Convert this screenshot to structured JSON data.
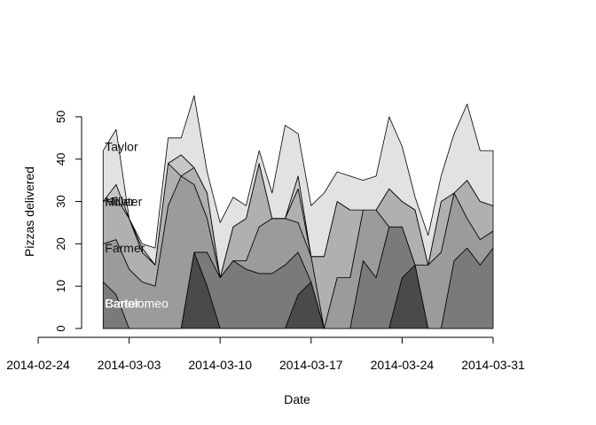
{
  "chart_data": {
    "type": "area",
    "stacked": true,
    "xlabel": "Date",
    "ylabel": "Pizzas delivered",
    "xlim": [
      "2014-02-24",
      "2014-03-31"
    ],
    "ylim": [
      0,
      55
    ],
    "grid": false,
    "x": [
      "2014-03-01",
      "2014-03-02",
      "2014-03-03",
      "2014-03-04",
      "2014-03-05",
      "2014-03-06",
      "2014-03-07",
      "2014-03-08",
      "2014-03-09",
      "2014-03-10",
      "2014-03-11",
      "2014-03-12",
      "2014-03-13",
      "2014-03-14",
      "2014-03-15",
      "2014-03-16",
      "2014-03-17",
      "2014-03-18",
      "2014-03-19",
      "2014-03-20",
      "2014-03-21",
      "2014-03-22",
      "2014-03-23",
      "2014-03-24",
      "2014-03-25",
      "2014-03-26",
      "2014-03-27",
      "2014-03-28",
      "2014-03-29",
      "2014-03-30",
      "2014-03-31"
    ],
    "x_ticks": [
      "2014-02-24",
      "2014-03-03",
      "2014-03-10",
      "2014-03-17",
      "2014-03-24",
      "2014-03-31"
    ],
    "y_ticks": [
      "0",
      "10",
      "20",
      "30",
      "40",
      "50"
    ],
    "series": [
      {
        "name": "Bartolomeo",
        "color": "#4a4a4a",
        "values": [
          0,
          0,
          0,
          0,
          0,
          0,
          0,
          18,
          10,
          0,
          0,
          0,
          0,
          0,
          0,
          8,
          11,
          0,
          0,
          0,
          0,
          0,
          0,
          12,
          15,
          0,
          0,
          0,
          0,
          0,
          0
        ]
      },
      {
        "name": "Carter",
        "color": "#7a7a7a",
        "values": [
          11,
          8,
          0,
          0,
          0,
          0,
          0,
          0,
          8,
          12,
          16,
          14,
          13,
          13,
          15,
          10,
          0,
          0,
          0,
          0,
          16,
          12,
          24,
          12,
          0,
          0,
          0,
          16,
          19,
          15,
          19
        ]
      },
      {
        "name": "Farmer",
        "color": "#9b9b9b",
        "values": [
          9,
          13,
          14,
          11,
          10,
          29,
          36,
          16,
          8,
          0,
          0,
          2,
          11,
          13,
          11,
          7,
          6,
          0,
          12,
          12,
          12,
          16,
          0,
          0,
          0,
          15,
          18,
          16,
          7,
          6,
          4
        ]
      },
      {
        "name": "Hunter",
        "color": "#b0b0b0",
        "values": [
          10,
          10,
          12,
          7,
          5,
          10,
          0,
          4,
          6,
          0,
          8,
          10,
          15,
          0,
          0,
          8,
          0,
          17,
          18,
          16,
          0,
          0,
          9,
          6,
          13,
          0,
          12,
          0,
          9,
          9,
          6
        ]
      },
      {
        "name": "Miller",
        "color": "#c6c6c6",
        "values": [
          0,
          3,
          0,
          1,
          0,
          0,
          5,
          0,
          0,
          0,
          0,
          0,
          0,
          0,
          0,
          3,
          0,
          0,
          0,
          0,
          0,
          0,
          0,
          0,
          0,
          0,
          0,
          0,
          0,
          0,
          0
        ]
      },
      {
        "name": "Taylor",
        "color": "#e2e2e2",
        "values": [
          12,
          13,
          0,
          1,
          4,
          6,
          4,
          17,
          5,
          13,
          7,
          3,
          3,
          6,
          22,
          10,
          12,
          15,
          7,
          8,
          7,
          8,
          17,
          13,
          3,
          7,
          6,
          14,
          18,
          12,
          13
        ]
      }
    ],
    "series_labels": [
      {
        "name": "Taylor",
        "value": 43
      },
      {
        "name": "Hunter",
        "value": 30
      },
      {
        "name": "Miller",
        "value": 30
      },
      {
        "name": "Farmer",
        "value": 19
      },
      {
        "name": "Carter",
        "value": 6
      },
      {
        "name": "Bartolomeo",
        "value": 6
      }
    ]
  }
}
